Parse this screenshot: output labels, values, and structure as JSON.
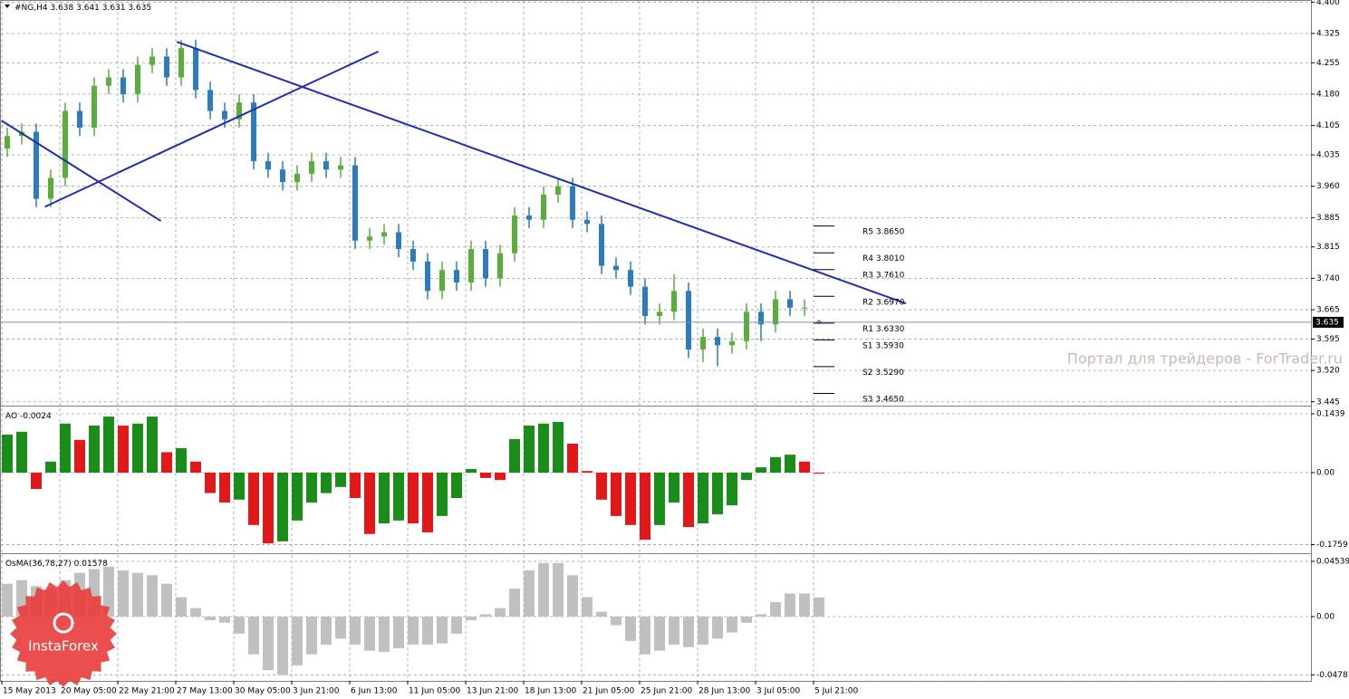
{
  "chart_data": [
    {
      "type": "candlestick",
      "title": "#NG,H4",
      "categories": [
        "15 May 2013",
        null,
        null,
        null,
        "20 May 05:00",
        null,
        null,
        null,
        "22 May 21:00",
        null,
        null,
        null,
        "27 May 13:00",
        null,
        null,
        null,
        "30 May 05:00",
        null,
        null,
        null,
        "3 Jun 21:00",
        null,
        null,
        null,
        "6 Jun 13:00",
        null,
        null,
        null,
        "11 Jun 05:00",
        null,
        null,
        null,
        "13 Jun 21:00",
        null,
        null,
        null,
        "18 Jun 13:00",
        null,
        null,
        null,
        "21 Jun 05:00",
        null,
        null,
        null,
        "25 Jun 21:00",
        null,
        null,
        null,
        "28 Jun 13:00",
        null,
        null,
        null,
        "3 Jul 05:00",
        null,
        null,
        null,
        "5 Jul 21:00"
      ],
      "open": [
        4.05,
        4.08,
        4.09,
        3.93,
        3.98,
        4.14,
        4.1,
        4.2,
        4.22,
        4.18,
        4.25,
        4.27,
        4.22,
        4.29,
        4.19,
        4.14,
        4.12,
        4.16,
        4.02,
        4.0,
        3.97,
        3.99,
        4.02,
        4.0,
        4.01,
        3.83,
        3.84,
        3.85,
        3.81,
        3.78,
        3.71,
        3.76,
        3.73,
        3.81,
        3.74,
        3.8,
        3.89,
        3.88,
        3.94,
        3.96,
        3.88,
        3.87,
        3.77,
        3.76,
        3.72,
        3.65,
        3.66,
        3.71,
        3.57,
        3.6,
        3.58,
        3.59,
        3.66,
        3.63,
        3.69,
        3.67,
        3.638
      ],
      "high": [
        4.1,
        4.11,
        4.11,
        4.0,
        4.16,
        4.16,
        4.22,
        4.24,
        4.24,
        4.27,
        4.29,
        4.29,
        4.31,
        4.31,
        4.21,
        4.16,
        4.18,
        4.18,
        4.04,
        4.02,
        4.01,
        4.04,
        4.04,
        4.03,
        4.03,
        3.86,
        3.87,
        3.87,
        3.83,
        3.8,
        3.78,
        3.78,
        3.83,
        3.83,
        3.82,
        3.91,
        3.91,
        3.96,
        3.98,
        3.98,
        3.9,
        3.89,
        3.79,
        3.78,
        3.74,
        3.68,
        3.75,
        3.73,
        3.62,
        3.62,
        3.61,
        3.68,
        3.68,
        3.71,
        3.71,
        3.69,
        3.641
      ],
      "low": [
        4.03,
        4.06,
        3.91,
        3.91,
        3.96,
        4.08,
        4.08,
        4.18,
        4.16,
        4.16,
        4.23,
        4.2,
        4.2,
        4.17,
        4.12,
        4.1,
        4.1,
        4.0,
        3.98,
        3.95,
        3.95,
        3.97,
        3.98,
        3.98,
        3.81,
        3.81,
        3.82,
        3.79,
        3.76,
        3.69,
        3.69,
        3.71,
        3.71,
        3.72,
        3.72,
        3.78,
        3.86,
        3.86,
        3.92,
        3.86,
        3.85,
        3.75,
        3.74,
        3.7,
        3.63,
        3.63,
        3.64,
        3.55,
        3.54,
        3.53,
        3.56,
        3.57,
        3.59,
        3.61,
        3.65,
        3.65,
        3.631
      ],
      "close": [
        4.08,
        4.09,
        3.93,
        3.98,
        4.14,
        4.1,
        4.2,
        4.22,
        4.18,
        4.25,
        4.27,
        4.22,
        4.29,
        4.19,
        4.14,
        4.12,
        4.16,
        4.02,
        4.0,
        3.97,
        3.99,
        4.02,
        4.0,
        4.01,
        3.83,
        3.84,
        3.85,
        3.81,
        3.78,
        3.71,
        3.76,
        3.73,
        3.81,
        3.74,
        3.8,
        3.89,
        3.88,
        3.94,
        3.96,
        3.88,
        3.87,
        3.77,
        3.76,
        3.72,
        3.65,
        3.66,
        3.71,
        3.57,
        3.6,
        3.58,
        3.59,
        3.66,
        3.63,
        3.69,
        3.67,
        3.67,
        3.635
      ],
      "up_color": "#5aae3c",
      "down_color": "#2b7bbf",
      "ylim": [
        3.438,
        4.405
      ],
      "yticks": [
        {
          "value": 4.4,
          "label": "4.400"
        },
        4.325,
        4.255,
        {
          "value": 4.18,
          "label": "4.180"
        },
        4.105,
        4.035,
        {
          "value": 3.96,
          "label": "3.960"
        },
        3.885,
        3.815,
        {
          "value": 3.74,
          "label": "3.740"
        },
        3.665,
        3.595,
        {
          "value": 3.52,
          "label": "3.520"
        },
        3.445
      ],
      "grid": true,
      "trendlines": [
        {
          "x": [
            -0.4,
            10.6
          ],
          "y": [
            4.117,
            3.877
          ]
        },
        {
          "x": [
            2.6,
            25.6
          ],
          "y": [
            3.911,
            4.282
          ]
        },
        {
          "x": [
            11.7,
            62
          ],
          "y": [
            4.305,
            3.68
          ]
        }
      ],
      "trendline_color": "#1f2fb0",
      "pivots": [
        {
          "name": "R5",
          "value": 3.865,
          "label": "3.8650"
        },
        {
          "name": "R4",
          "value": 3.801,
          "label": "3.8010"
        },
        {
          "name": "R3",
          "value": 3.761,
          "label": "3.7610"
        },
        {
          "name": "R2",
          "value": 3.697,
          "label": "3.6970"
        },
        {
          "name": "R1",
          "value": 3.633,
          "label": "3.6330"
        },
        {
          "name": "S1",
          "value": 3.593,
          "label": "3.5930"
        },
        {
          "name": "S2",
          "value": 3.529,
          "label": "3.5290"
        },
        {
          "name": "S3",
          "value": 3.465,
          "label": "3.4650"
        }
      ]
    },
    {
      "type": "bar",
      "title": "AO",
      "values": [
        0.093,
        0.1,
        -0.04,
        0.027,
        0.12,
        0.08,
        0.115,
        0.137,
        0.115,
        0.12,
        0.137,
        0.05,
        0.06,
        0.027,
        -0.05,
        -0.073,
        -0.066,
        -0.128,
        -0.173,
        -0.168,
        -0.117,
        -0.073,
        -0.05,
        -0.035,
        -0.062,
        -0.15,
        -0.124,
        -0.117,
        -0.124,
        -0.146,
        -0.106,
        -0.062,
        0.009,
        -0.013,
        -0.018,
        0.082,
        0.115,
        0.12,
        0.124,
        0.071,
        0.004,
        -0.066,
        -0.106,
        -0.128,
        -0.164,
        -0.128,
        -0.073,
        -0.133,
        -0.124,
        -0.102,
        -0.08,
        -0.018,
        0.013,
        0.038,
        0.044,
        0.027,
        -0.0024
      ],
      "up_color": "#1a8c1a",
      "down_color": "#e01a1a",
      "ylim": [
        -0.1948,
        0.1594
      ],
      "yticks": [
        0.1439,
        {
          "value": 0,
          "label": "0.00"
        },
        -0.1759
      ],
      "grid": true
    },
    {
      "type": "bar",
      "title": "OsMA(36,78,27)",
      "values": [
        0.027,
        0.03,
        0.025,
        0.023,
        0.03,
        0.036,
        0.039,
        0.041,
        0.038,
        0.036,
        0.034,
        0.027,
        0.016,
        0.007,
        -0.003,
        -0.005,
        -0.014,
        -0.031,
        -0.044,
        -0.048,
        -0.04,
        -0.031,
        -0.023,
        -0.018,
        -0.023,
        -0.028,
        -0.029,
        -0.026,
        -0.023,
        -0.023,
        -0.022,
        -0.014,
        -0.003,
        0.002,
        0.007,
        0.023,
        0.038,
        0.044,
        0.044,
        0.034,
        0.016,
        0.004,
        -0.007,
        -0.02,
        -0.031,
        -0.028,
        -0.023,
        -0.025,
        -0.023,
        -0.018,
        -0.013,
        -0.005,
        0.002,
        0.012,
        0.019,
        0.019,
        0.01578
      ],
      "color": "#c0c0c0",
      "ylim": [
        -0.0528,
        0.0506
      ],
      "yticks": [
        0.04539,
        {
          "value": 0,
          "label": "0.00"
        },
        -0.04781
      ],
      "grid": true
    }
  ],
  "watermark": "Портал для трейдеров - ForTrader.ru",
  "logo": "InstaForex"
}
